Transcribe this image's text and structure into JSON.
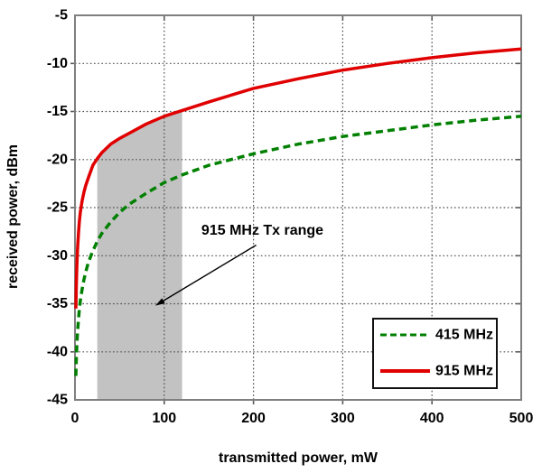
{
  "chart_data": {
    "type": "line",
    "xlabel": "transmitted power, mW",
    "ylabel": "received power, dBm",
    "xlim": [
      0,
      500
    ],
    "ylim": [
      -45,
      -5
    ],
    "x_ticks": [
      0,
      100,
      200,
      300,
      400,
      500
    ],
    "y_ticks": [
      -5,
      -10,
      -15,
      -20,
      -25,
      -30,
      -35,
      -40,
      -45
    ],
    "grid": "dotted",
    "series": [
      {
        "name": "415 MHz",
        "color": "#008000",
        "style": "dashed",
        "points": [
          [
            1,
            -42.5
          ],
          [
            1.5,
            -40.7
          ],
          [
            2,
            -39.5
          ],
          [
            2.5,
            -38.5
          ],
          [
            3,
            -37.7
          ],
          [
            4,
            -36.5
          ],
          [
            5,
            -35.5
          ],
          [
            6,
            -34.7
          ],
          [
            8,
            -33.5
          ],
          [
            10,
            -32.5
          ],
          [
            12,
            -31.7
          ],
          [
            15,
            -30.7
          ],
          [
            20,
            -29.5
          ],
          [
            25,
            -28.5
          ],
          [
            30,
            -27.7
          ],
          [
            40,
            -26.5
          ],
          [
            50,
            -25.5
          ],
          [
            60,
            -24.7
          ],
          [
            80,
            -23.5
          ],
          [
            100,
            -22.4
          ],
          [
            120,
            -21.6
          ],
          [
            150,
            -20.6
          ],
          [
            200,
            -19.4
          ],
          [
            250,
            -18.4
          ],
          [
            300,
            -17.6
          ],
          [
            350,
            -17.0
          ],
          [
            400,
            -16.4
          ],
          [
            450,
            -15.9
          ],
          [
            500,
            -15.5
          ]
        ]
      },
      {
        "name": "915 MHz",
        "color": "#e00000",
        "style": "solid",
        "points": [
          [
            1,
            -35.5
          ],
          [
            1.5,
            -33.0
          ],
          [
            2,
            -31.3
          ],
          [
            2.5,
            -30.0
          ],
          [
            3,
            -29.0
          ],
          [
            4,
            -27.5
          ],
          [
            5,
            -26.4
          ],
          [
            6,
            -25.5
          ],
          [
            8,
            -24.3
          ],
          [
            10,
            -23.4
          ],
          [
            12,
            -22.7
          ],
          [
            15,
            -21.9
          ],
          [
            20,
            -20.6
          ],
          [
            25,
            -19.9
          ],
          [
            30,
            -19.3
          ],
          [
            40,
            -18.4
          ],
          [
            50,
            -17.8
          ],
          [
            60,
            -17.3
          ],
          [
            80,
            -16.3
          ],
          [
            100,
            -15.5
          ],
          [
            120,
            -14.9
          ],
          [
            150,
            -14.0
          ],
          [
            200,
            -12.6
          ],
          [
            250,
            -11.6
          ],
          [
            300,
            -10.7
          ],
          [
            350,
            -10.0
          ],
          [
            400,
            -9.4
          ],
          [
            450,
            -8.9
          ],
          [
            500,
            -8.5
          ]
        ]
      }
    ],
    "shaded_region": {
      "x_start": 25,
      "x_end": 120,
      "bounded_above_by": "915 MHz",
      "color": "#c2c2c2"
    },
    "annotation": {
      "text": "915 MHz Tx range",
      "color": "#000000",
      "text_pos": [
        210,
        -27.4
      ],
      "arrow_start": [
        203,
        -28.9
      ],
      "arrow_end": [
        90,
        -35.2
      ]
    },
    "legend": {
      "position": "lower-right",
      "items": [
        {
          "label": "415 MHz",
          "color": "#008000",
          "style": "dashed"
        },
        {
          "label": "915 MHz",
          "color": "#e00000",
          "style": "solid"
        }
      ]
    }
  },
  "frame": {
    "background": "#ffffff",
    "border_color": "#7f7f7f",
    "grid_color": "#4d4d4d",
    "tick_color": "#595959",
    "legend_border_color": "#111111"
  }
}
